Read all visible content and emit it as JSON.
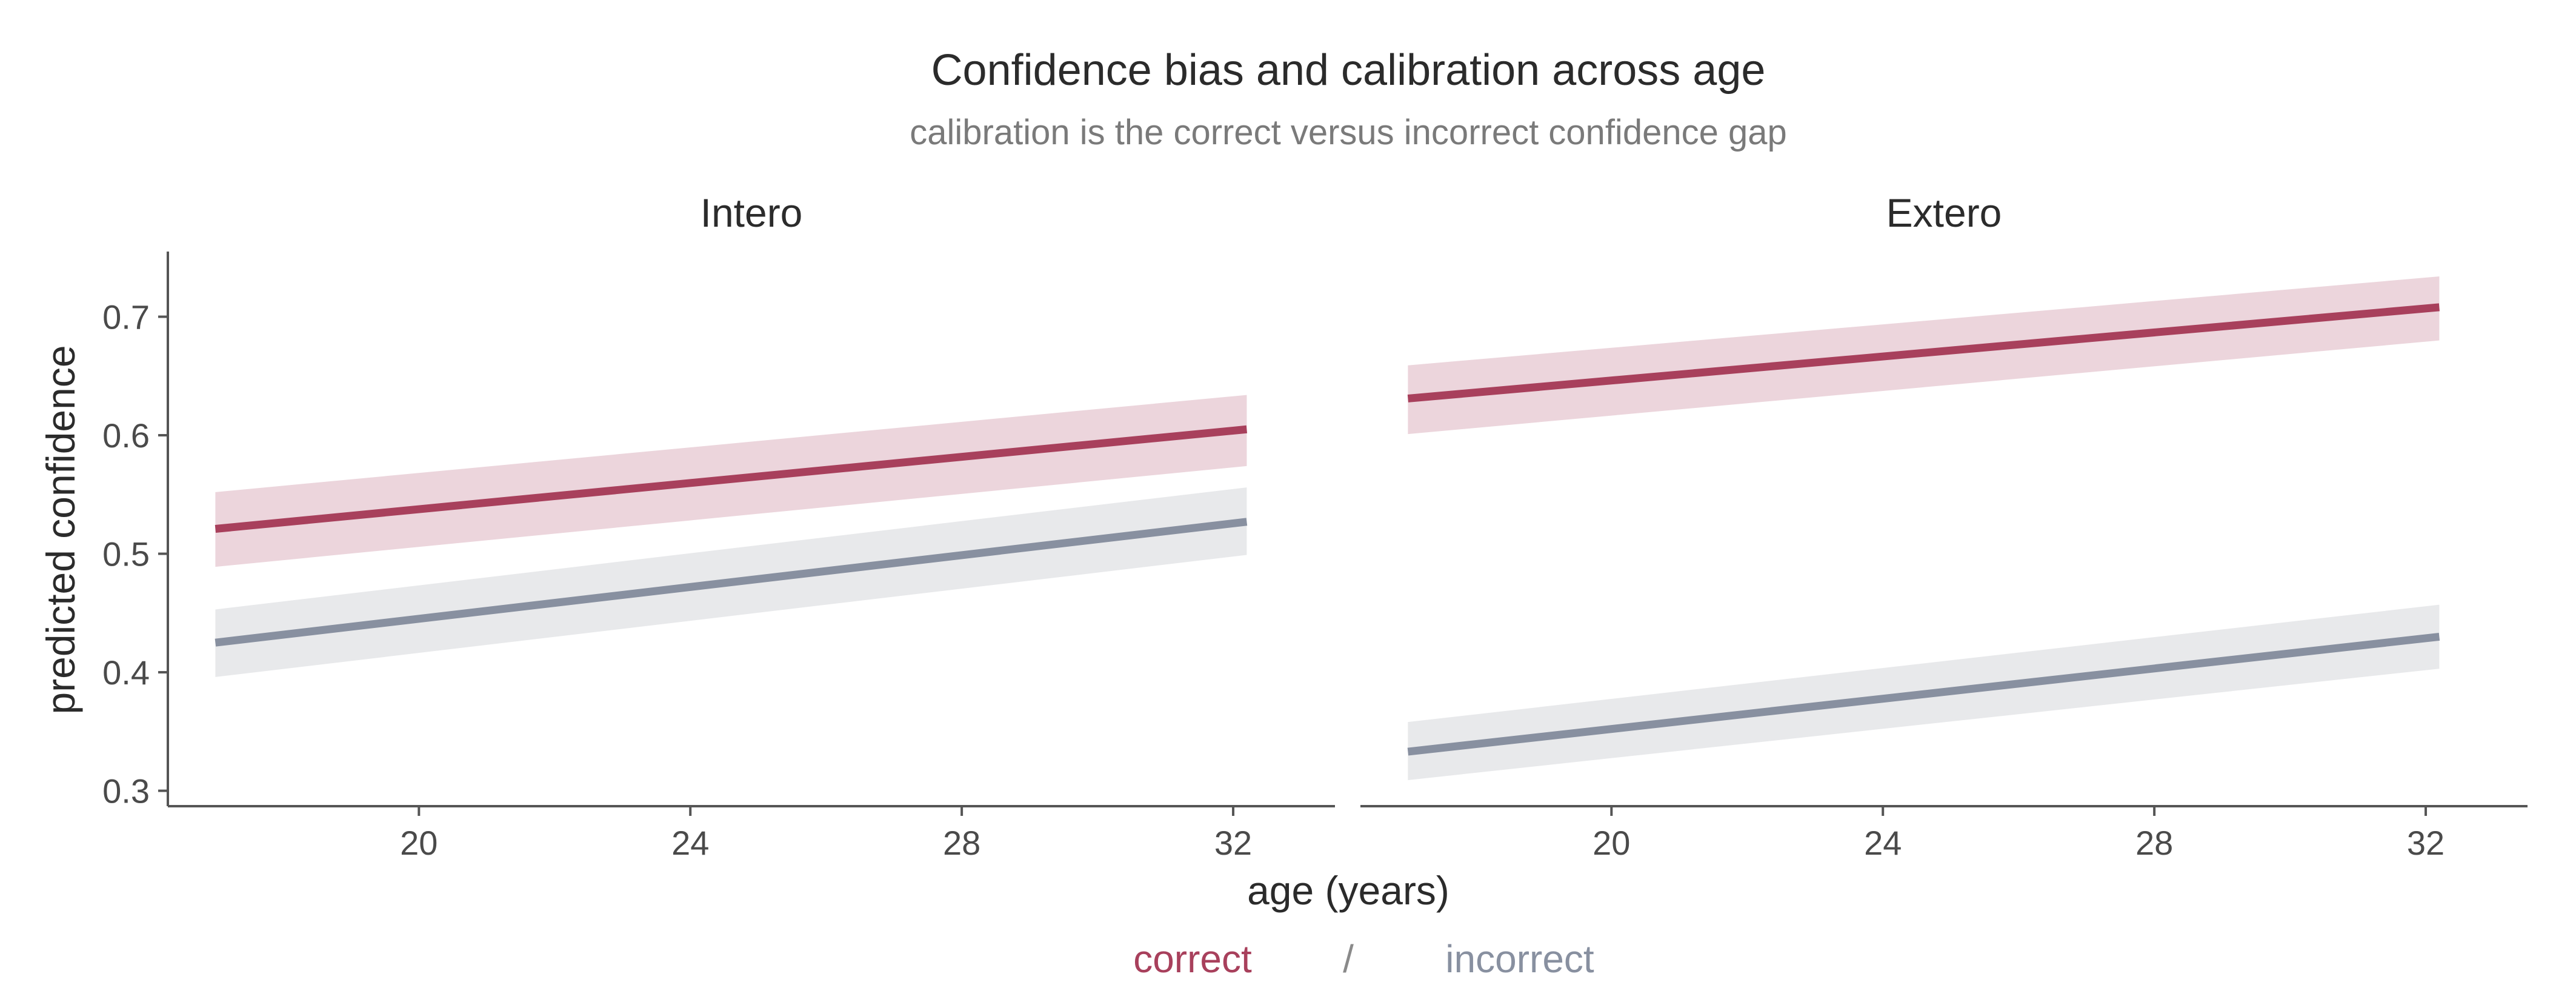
{
  "chart_data": {
    "type": "line",
    "title": "Confidence bias and calibration across age",
    "subtitle": "calibration is the correct versus incorrect confidence gap",
    "xlabel": "age (years)",
    "ylabel": "predicted confidence",
    "xlim": [
      16.3,
      33.5
    ],
    "ylim": [
      0.287,
      0.755
    ],
    "x_ticks": [
      20,
      24,
      28,
      32
    ],
    "y_ticks": [
      0.3,
      0.4,
      0.5,
      0.6,
      0.7
    ],
    "grid": false,
    "legend": {
      "placement": "bottom-center",
      "separator": "/",
      "entries": [
        "correct",
        "incorrect"
      ]
    },
    "colors": {
      "correct_line": "#a8405c",
      "correct_band": "#ecd5dc",
      "incorrect_line": "#8890a0",
      "incorrect_band": "#e8e9eb",
      "legend_correct": "#a8405c",
      "legend_incorrect": "#8890a0"
    },
    "x": [
      17.0,
      32.2
    ],
    "panels": [
      {
        "name": "Intero",
        "series": [
          {
            "name": "correct",
            "values": [
              0.521,
              0.605
            ],
            "lower": [
              0.489,
              0.574
            ],
            "upper": [
              0.552,
              0.634
            ]
          },
          {
            "name": "incorrect",
            "values": [
              0.425,
              0.527
            ],
            "lower": [
              0.396,
              0.499
            ],
            "upper": [
              0.453,
              0.556
            ]
          }
        ]
      },
      {
        "name": "Extero",
        "series": [
          {
            "name": "correct",
            "values": [
              0.631,
              0.708
            ],
            "lower": [
              0.601,
              0.68
            ],
            "upper": [
              0.659,
              0.734
            ]
          },
          {
            "name": "incorrect",
            "values": [
              0.333,
              0.43
            ],
            "lower": [
              0.309,
              0.403
            ],
            "upper": [
              0.358,
              0.457
            ]
          }
        ]
      }
    ]
  }
}
